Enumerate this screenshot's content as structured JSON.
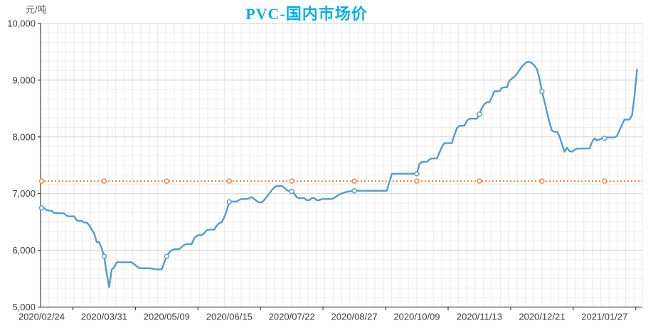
{
  "chart": {
    "title": "PVC-国内市场价",
    "y_unit": "元/吨",
    "title_color": "#00b0f0"
  },
  "chart_data": {
    "type": "line",
    "title": "PVC-国内市场价",
    "xlabel": "",
    "ylabel": "元/吨",
    "ylim": [
      5000,
      10000
    ],
    "y_ticks": [
      5000,
      6000,
      7000,
      8000,
      9000,
      10000
    ],
    "y_tick_labels": [
      "5,000",
      "6,000",
      "7,000",
      "8,000",
      "9,000",
      "10,000"
    ],
    "x_tick_labels": [
      "2020/02/24",
      "2020/03/31",
      "2020/05/09",
      "2020/06/15",
      "2020/07/22",
      "2020/08/27",
      "2020/10/09",
      "2020/11/13",
      "2020/12/21",
      "2021/01/27"
    ],
    "points_per_label": 25,
    "marker_every": 25,
    "grid": "on",
    "legend": "none",
    "series": [
      {
        "id": "price-line",
        "color": "#4f9dcd",
        "marker": "hollow-circle",
        "values": [
          6750,
          6745,
          6710,
          6700,
          6695,
          6660,
          6655,
          6655,
          6655,
          6650,
          6610,
          6600,
          6600,
          6600,
          6530,
          6520,
          6520,
          6490,
          6490,
          6445,
          6365,
          6300,
          6145,
          6145,
          6035,
          5895,
          5600,
          5350,
          5660,
          5700,
          5790,
          5790,
          5790,
          5790,
          5790,
          5790,
          5790,
          5755,
          5720,
          5690,
          5685,
          5685,
          5685,
          5685,
          5680,
          5670,
          5665,
          5665,
          5665,
          5780,
          5895,
          5960,
          6000,
          6020,
          6020,
          6020,
          6060,
          6095,
          6110,
          6110,
          6110,
          6215,
          6255,
          6270,
          6270,
          6300,
          6355,
          6365,
          6365,
          6365,
          6435,
          6480,
          6495,
          6585,
          6700,
          6855,
          6860,
          6860,
          6860,
          6890,
          6905,
          6905,
          6905,
          6920,
          6940,
          6905,
          6870,
          6845,
          6845,
          6890,
          6940,
          7000,
          7060,
          7105,
          7135,
          7135,
          7135,
          7105,
          7060,
          7045,
          7040,
          7000,
          6935,
          6920,
          6920,
          6920,
          6885,
          6885,
          6920,
          6920,
          6885,
          6885,
          6905,
          6905,
          6905,
          6905,
          6905,
          6925,
          6955,
          6985,
          7000,
          7020,
          7030,
          7040,
          7040,
          7050,
          7050,
          7050,
          7050,
          7050,
          7050,
          7050,
          7050,
          7050,
          7050,
          7050,
          7050,
          7050,
          7050,
          7200,
          7350,
          7350,
          7350,
          7350,
          7350,
          7350,
          7350,
          7350,
          7350,
          7350,
          7350,
          7520,
          7560,
          7560,
          7560,
          7600,
          7620,
          7620,
          7620,
          7725,
          7825,
          7890,
          7890,
          7890,
          7890,
          8030,
          8155,
          8195,
          8195,
          8195,
          8285,
          8320,
          8320,
          8320,
          8320,
          8400,
          8510,
          8580,
          8610,
          8610,
          8700,
          8805,
          8805,
          8805,
          8865,
          8875,
          8875,
          8990,
          9030,
          9060,
          9115,
          9175,
          9240,
          9285,
          9320,
          9320,
          9300,
          9255,
          9195,
          9030,
          8800,
          8625,
          8440,
          8255,
          8110,
          8090,
          8090,
          8010,
          7870,
          7740,
          7810,
          7750,
          7740,
          7770,
          7795,
          7795,
          7795,
          7795,
          7795,
          7795,
          7905,
          7975,
          7935,
          7955,
          7975,
          7975,
          7990,
          7990,
          7990,
          7990,
          8020,
          8115,
          8215,
          8305,
          8305,
          8305,
          8380,
          8725,
          9190
        ]
      },
      {
        "id": "reference-line",
        "color": "#e8823c",
        "style": "dotted",
        "marker": "hollow-circle",
        "constant_value": 7220
      }
    ]
  }
}
